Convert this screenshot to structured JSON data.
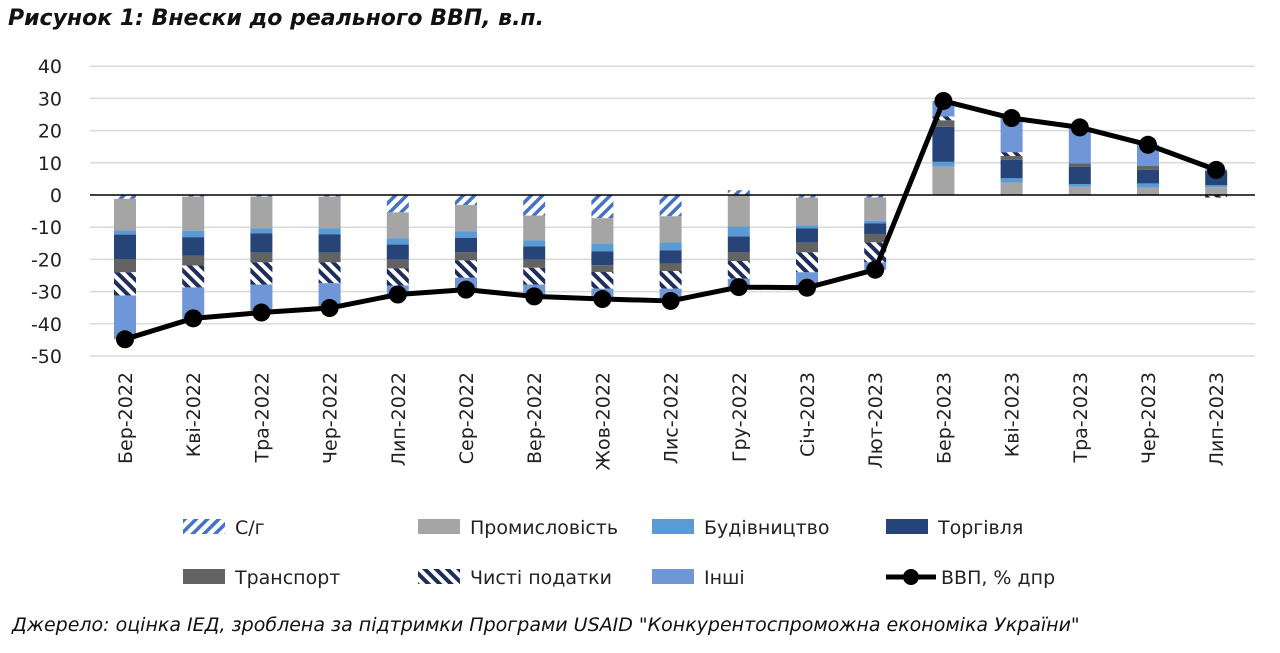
{
  "chart_data": {
    "type": "bar",
    "stacked": true,
    "title": "Рисунок 1: Внески до реального ВВП, в.п.",
    "source": "Джерело: оцінка ІЕД, зроблена за підтримки Програми USAID \"Конкурентоспроможна економіка України\"",
    "xlabel": "",
    "ylabel": "",
    "ylim": [
      -50,
      40
    ],
    "yticks": [
      40,
      30,
      20,
      10,
      0,
      -10,
      -20,
      -30,
      -40,
      -50
    ],
    "grid": true,
    "legend_position": "bottom",
    "categories": [
      "Бер-2022",
      "Кві-2022",
      "Тра-2022",
      "Чер-2022",
      "Лип-2022",
      "Сер-2022",
      "Вер-2022",
      "Жов-2022",
      "Лис-2022",
      "Гру-2022",
      "Січ-2023",
      "Лют-2023",
      "Бер-2023",
      "Кві-2023",
      "Тра-2023",
      "Чер-2023",
      "Лип-2023"
    ],
    "series": [
      {
        "name": "С/г",
        "color": "#4472c4",
        "pattern": "light-stripes",
        "values": [
          -1.2,
          -0.5,
          -0.5,
          -0.5,
          -5.4,
          -3.1,
          -6.4,
          -7.2,
          -6.6,
          1.5,
          -0.8,
          -0.8,
          0,
          0,
          0,
          0,
          0
        ]
      },
      {
        "name": "Промисловість",
        "color": "#a5a5a5",
        "values": [
          -9.8,
          -10.6,
          -9.8,
          -9.8,
          -8.0,
          -8.2,
          -7.7,
          -7.9,
          -8.1,
          -9.8,
          -8.6,
          -7.2,
          8.8,
          3.9,
          2.6,
          2.3,
          2.4
        ]
      },
      {
        "name": "Будівництво",
        "color": "#5b9bd5",
        "values": [
          -1.3,
          -2.0,
          -1.6,
          -1.9,
          -2.0,
          -2.0,
          -1.9,
          -2.4,
          -2.5,
          -3.1,
          -1.0,
          -0.8,
          1.5,
          1.3,
          0.8,
          1.3,
          0.7
        ]
      },
      {
        "name": "Торгівля",
        "color": "#264478",
        "values": [
          -7.7,
          -5.8,
          -6.0,
          -5.7,
          -4.7,
          -4.5,
          -4.1,
          -4.3,
          -4.1,
          -4.8,
          -4.4,
          -3.3,
          10.9,
          5.7,
          5.4,
          4.2,
          4.4
        ]
      },
      {
        "name": "Транспорт",
        "color": "#636363",
        "values": [
          -4.0,
          -3.0,
          -3.0,
          -3.0,
          -2.7,
          -2.5,
          -2.5,
          -2.1,
          -2.3,
          -2.8,
          -3.0,
          -2.6,
          2.0,
          1.2,
          1.0,
          1.2,
          0
        ]
      },
      {
        "name": "Чисті податки",
        "color": "#1f2d5a",
        "pattern": "dark-stripes",
        "values": [
          -7.2,
          -6.8,
          -6.9,
          -6.5,
          -5.3,
          -5.4,
          -5.2,
          -5.2,
          -5.5,
          -5.5,
          -6.2,
          -6.2,
          1.2,
          1.2,
          0,
          0,
          -0.8
        ]
      },
      {
        "name": "Інші",
        "color": "#6f96d6",
        "values": [
          -13.6,
          -9.6,
          -8.7,
          -7.7,
          -2.8,
          -3.7,
          -3.7,
          -3.2,
          -3.8,
          -2.6,
          -4.8,
          -2.3,
          4.8,
          10.6,
          11.2,
          6.6,
          0.5
        ]
      }
    ],
    "line": {
      "name": "ВВП, % дпр",
      "color": "#000000",
      "values": [
        -44.8,
        -38.3,
        -36.5,
        -35.1,
        -30.9,
        -29.4,
        -31.5,
        -32.3,
        -32.9,
        -28.6,
        -28.8,
        -23.2,
        29.2,
        23.9,
        21.0,
        15.6,
        7.8
      ]
    }
  }
}
